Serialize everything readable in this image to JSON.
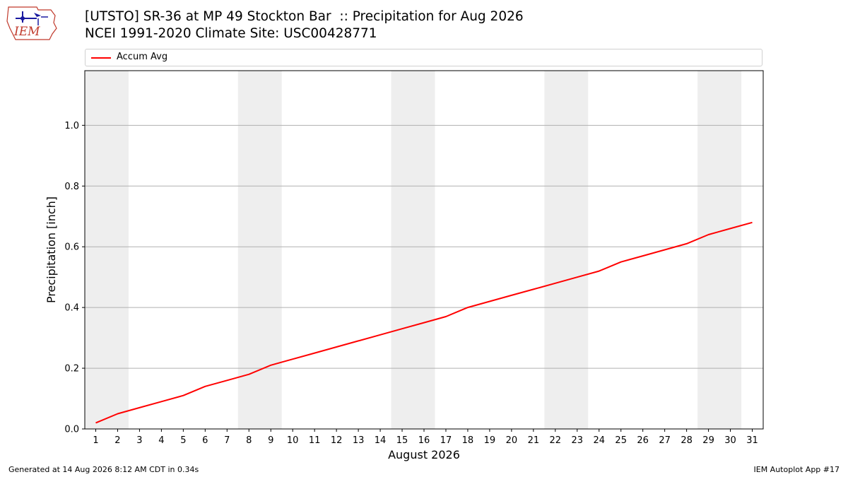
{
  "header": {
    "logo_text": "IEM",
    "title_line1": "[UTSTO] SR-36 at MP 49 Stockton Bar  :: Precipitation for Aug 2026",
    "title_line2": "NCEI 1991-2020 Climate Site: USC00428771"
  },
  "legend": {
    "entries": [
      {
        "label": "Accum Avg",
        "color": "#ff0000"
      }
    ],
    "placement": "top"
  },
  "footer": {
    "left_text": "Generated at 14 Aug 2026 8:12 AM CDT in 0.34s",
    "right_text": "IEM Autoplot App #17"
  },
  "chart_data": {
    "type": "line",
    "xlabel": "August 2026",
    "ylabel": "Precipitation [inch]",
    "x": [
      1,
      2,
      3,
      4,
      5,
      6,
      7,
      8,
      9,
      10,
      11,
      12,
      13,
      14,
      15,
      16,
      17,
      18,
      19,
      20,
      21,
      22,
      23,
      24,
      25,
      26,
      27,
      28,
      29,
      30,
      31
    ],
    "xlim": [
      0.5,
      31.5
    ],
    "ylim": [
      0,
      1.18
    ],
    "yticks": [
      0.0,
      0.2,
      0.4,
      0.6,
      0.8,
      1.0
    ],
    "ytick_labels": [
      "0.0",
      "0.2",
      "0.4",
      "0.6",
      "0.8",
      "1.0"
    ],
    "grid": "horizontal",
    "weekend_bands": [
      [
        0.5,
        2.5
      ],
      [
        7.5,
        9.5
      ],
      [
        14.5,
        16.5
      ],
      [
        21.5,
        23.5
      ],
      [
        28.5,
        30.5
      ]
    ],
    "series": [
      {
        "name": "Accum Avg",
        "color": "#ff0000",
        "values": [
          0.02,
          0.05,
          0.07,
          0.09,
          0.11,
          0.14,
          0.16,
          0.18,
          0.21,
          0.23,
          0.25,
          0.27,
          0.29,
          0.31,
          0.33,
          0.35,
          0.37,
          0.4,
          0.42,
          0.44,
          0.46,
          0.48,
          0.5,
          0.52,
          0.55,
          0.57,
          0.59,
          0.61,
          0.64,
          0.66,
          0.68
        ]
      }
    ]
  }
}
